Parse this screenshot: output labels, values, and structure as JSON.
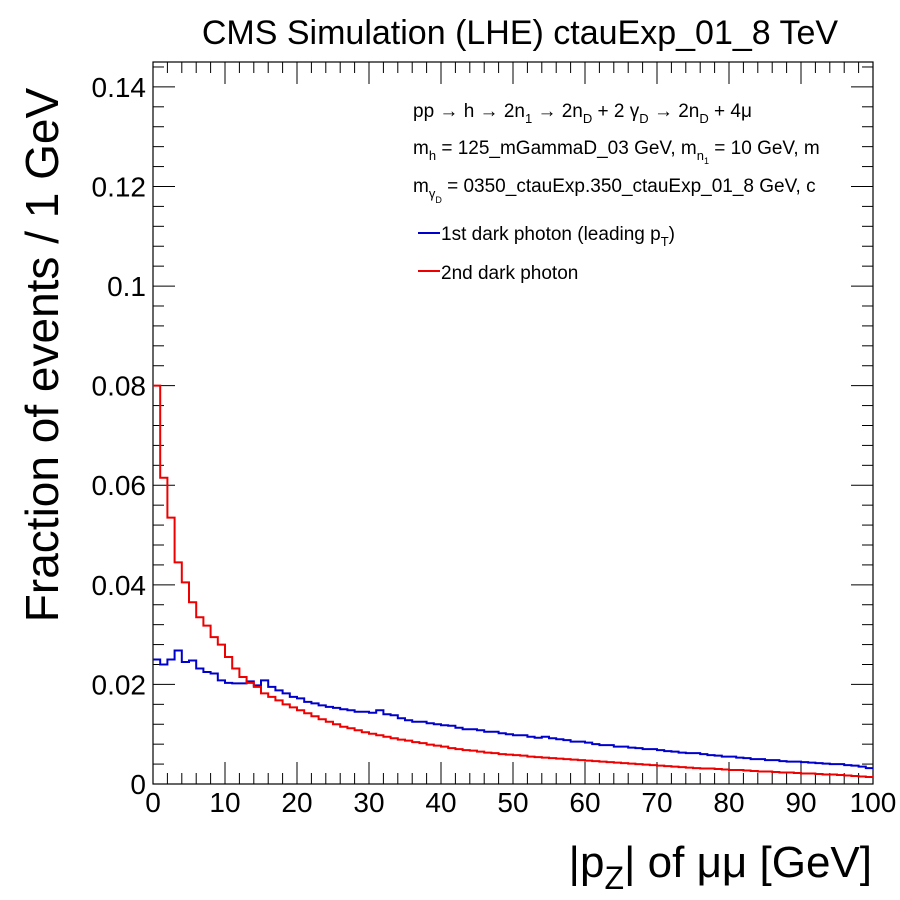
{
  "chart_data": {
    "type": "line",
    "title": "CMS Simulation (LHE) ctauExp_01_8 TeV",
    "ylabel": "Fraction of events / 1 GeV",
    "xlabel": {
      "prefix": "|p",
      "sub": "Z",
      "suffix": "| of μμ [GeV]"
    },
    "xlim": [
      0,
      100
    ],
    "ylim": [
      0,
      0.145
    ],
    "xticks": [
      "0",
      "10",
      "20",
      "30",
      "40",
      "50",
      "60",
      "70",
      "80",
      "90",
      "100"
    ],
    "yticks": [
      "0",
      "0.02",
      "0.04",
      "0.06",
      "0.08",
      "0.1",
      "0.12",
      "0.14"
    ],
    "annotations": {
      "process": {
        "a": "pp → h → 2n",
        "a_sub": "1",
        "b": " → 2n",
        "b_sub": "D",
        "c": " + 2 γ",
        "c_sub": "D",
        "d": " → 2n",
        "d_sub": "D",
        "e": " + 4μ"
      },
      "line2": {
        "a": "m",
        "a_sub": "h",
        "b": " = 125_mGammaD_03 GeV, m",
        "b_sub": "n",
        "b_subsub": "1",
        "c": " = 10 GeV, m"
      },
      "line3": {
        "a": "m",
        "a_sub": "γ",
        "a_subsub": "D",
        "b": " = 0350_ctauExp.350_ctauExp_01_8 GeV, c"
      }
    },
    "legend_position": "top-right",
    "series": [
      {
        "name_prefix": "1st dark photon (leading p",
        "name_sub": "T",
        "name_suffix": ")",
        "color": "#0000cc",
        "bin_edges_start": 0,
        "bin_width": 1,
        "values": [
          0.025,
          0.024,
          0.025,
          0.0268,
          0.0245,
          0.0248,
          0.0232,
          0.0225,
          0.0222,
          0.0208,
          0.0203,
          0.0202,
          0.0202,
          0.0206,
          0.0198,
          0.0208,
          0.0195,
          0.0188,
          0.0182,
          0.0175,
          0.0172,
          0.0165,
          0.0162,
          0.0158,
          0.0155,
          0.0153,
          0.015,
          0.0148,
          0.0145,
          0.0145,
          0.0143,
          0.0148,
          0.014,
          0.0138,
          0.0132,
          0.0128,
          0.0125,
          0.0125,
          0.0122,
          0.012,
          0.0118,
          0.0117,
          0.0113,
          0.011,
          0.011,
          0.0108,
          0.0105,
          0.0105,
          0.0102,
          0.01,
          0.0098,
          0.0098,
          0.0095,
          0.0093,
          0.0095,
          0.0092,
          0.009,
          0.0088,
          0.0085,
          0.0085,
          0.0083,
          0.008,
          0.0078,
          0.0078,
          0.0075,
          0.0075,
          0.0073,
          0.0072,
          0.007,
          0.007,
          0.0068,
          0.0066,
          0.0065,
          0.0063,
          0.0062,
          0.0062,
          0.006,
          0.0058,
          0.0057,
          0.0055,
          0.0055,
          0.0053,
          0.0052,
          0.005,
          0.005,
          0.0048,
          0.0048,
          0.0046,
          0.0045,
          0.0045,
          0.0044,
          0.0043,
          0.0042,
          0.0041,
          0.004,
          0.004,
          0.0038,
          0.0037,
          0.0035,
          0.0032
        ]
      },
      {
        "name": "2nd dark photon",
        "color": "#ee0000",
        "bin_edges_start": 0,
        "bin_width": 1,
        "values": [
          0.08,
          0.0615,
          0.0535,
          0.0445,
          0.0405,
          0.0365,
          0.0335,
          0.0318,
          0.0295,
          0.028,
          0.0255,
          0.0232,
          0.0215,
          0.0203,
          0.0195,
          0.0182,
          0.0175,
          0.0168,
          0.016,
          0.0154,
          0.0148,
          0.0142,
          0.0136,
          0.013,
          0.0125,
          0.012,
          0.0115,
          0.0112,
          0.0108,
          0.0104,
          0.0101,
          0.0098,
          0.0095,
          0.0092,
          0.0089,
          0.0087,
          0.0084,
          0.0082,
          0.0079,
          0.0077,
          0.0075,
          0.0072,
          0.007,
          0.0068,
          0.0067,
          0.0065,
          0.0063,
          0.0062,
          0.006,
          0.0059,
          0.0058,
          0.0057,
          0.0055,
          0.0054,
          0.0053,
          0.0052,
          0.0051,
          0.005,
          0.0049,
          0.0048,
          0.0047,
          0.0046,
          0.0045,
          0.0044,
          0.0043,
          0.0042,
          0.0041,
          0.004,
          0.0039,
          0.0038,
          0.0037,
          0.0036,
          0.0035,
          0.0034,
          0.0033,
          0.0032,
          0.0031,
          0.0031,
          0.003,
          0.0029,
          0.0028,
          0.0028,
          0.0027,
          0.0026,
          0.0025,
          0.0025,
          0.0024,
          0.0023,
          0.0023,
          0.0022,
          0.0021,
          0.0021,
          0.002,
          0.0019,
          0.0019,
          0.0018,
          0.0017,
          0.0016,
          0.0015,
          0.0014
        ]
      }
    ]
  }
}
